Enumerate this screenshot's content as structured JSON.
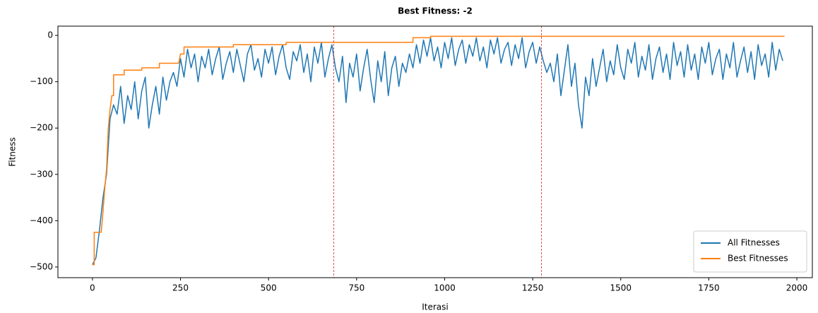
{
  "chart_data": {
    "type": "line",
    "title": "Best Fitness: -2",
    "x_label": "Iterasi",
    "y_label": "Fitness",
    "xlim": [
      -98,
      2044
    ],
    "ylim": [
      -523,
      20
    ],
    "xticks": [
      0,
      250,
      500,
      750,
      1000,
      1250,
      1500,
      1750,
      2000
    ],
    "yticks": [
      {
        "value": -500,
        "label": "−500"
      },
      {
        "value": -400,
        "label": "−400"
      },
      {
        "value": -300,
        "label": "−300"
      },
      {
        "value": -200,
        "label": "−200"
      },
      {
        "value": -100,
        "label": "−100"
      },
      0
    ],
    "legend": "lower right",
    "vlines": [
      685,
      1275
    ],
    "vline_color": "#d62728",
    "series": [
      {
        "name": "All Fitnesses",
        "color": "#1f77b4",
        "x": [
          0,
          10,
          20,
          30,
          40,
          50,
          60,
          70,
          80,
          90,
          100,
          110,
          120,
          130,
          140,
          150,
          160,
          170,
          180,
          190,
          200,
          210,
          220,
          230,
          240,
          250,
          260,
          270,
          280,
          290,
          300,
          310,
          320,
          330,
          340,
          350,
          360,
          370,
          380,
          390,
          400,
          410,
          420,
          430,
          440,
          450,
          460,
          470,
          480,
          490,
          500,
          510,
          520,
          530,
          540,
          550,
          560,
          570,
          580,
          590,
          600,
          610,
          620,
          630,
          640,
          650,
          660,
          670,
          680,
          690,
          700,
          710,
          720,
          730,
          740,
          750,
          760,
          770,
          780,
          790,
          800,
          810,
          820,
          830,
          840,
          850,
          860,
          870,
          880,
          890,
          900,
          910,
          920,
          930,
          940,
          950,
          960,
          970,
          980,
          990,
          1000,
          1010,
          1020,
          1030,
          1040,
          1050,
          1060,
          1070,
          1080,
          1090,
          1100,
          1110,
          1120,
          1130,
          1140,
          1150,
          1160,
          1170,
          1180,
          1190,
          1200,
          1210,
          1220,
          1230,
          1240,
          1250,
          1260,
          1270,
          1280,
          1290,
          1300,
          1310,
          1320,
          1330,
          1340,
          1350,
          1360,
          1370,
          1380,
          1390,
          1400,
          1410,
          1420,
          1430,
          1440,
          1450,
          1460,
          1470,
          1480,
          1490,
          1500,
          1510,
          1520,
          1530,
          1540,
          1550,
          1560,
          1570,
          1580,
          1590,
          1600,
          1610,
          1620,
          1630,
          1640,
          1650,
          1660,
          1670,
          1680,
          1690,
          1700,
          1710,
          1720,
          1730,
          1740,
          1750,
          1760,
          1770,
          1780,
          1790,
          1800,
          1810,
          1820,
          1830,
          1840,
          1850,
          1860,
          1870,
          1880,
          1890,
          1900,
          1910,
          1920,
          1930,
          1940,
          1950,
          1960
        ],
        "values": [
          -495,
          -480,
          -420,
          -350,
          -300,
          -180,
          -150,
          -170,
          -110,
          -190,
          -130,
          -160,
          -100,
          -180,
          -120,
          -90,
          -200,
          -150,
          -110,
          -170,
          -90,
          -140,
          -100,
          -80,
          -110,
          -50,
          -90,
          -30,
          -70,
          -40,
          -100,
          -45,
          -70,
          -30,
          -85,
          -50,
          -25,
          -95,
          -60,
          -35,
          -80,
          -30,
          -65,
          -100,
          -40,
          -20,
          -75,
          -50,
          -90,
          -30,
          -60,
          -25,
          -85,
          -45,
          -20,
          -70,
          -95,
          -35,
          -55,
          -20,
          -80,
          -40,
          -100,
          -25,
          -60,
          -15,
          -90,
          -50,
          -20,
          -70,
          -100,
          -45,
          -145,
          -60,
          -90,
          -40,
          -120,
          -70,
          -30,
          -95,
          -145,
          -55,
          -100,
          -35,
          -130,
          -70,
          -45,
          -110,
          -60,
          -80,
          -40,
          -70,
          -20,
          -60,
          -10,
          -45,
          -5,
          -55,
          -25,
          -70,
          -15,
          -50,
          -5,
          -65,
          -30,
          -10,
          -60,
          -20,
          -45,
          -5,
          -55,
          -25,
          -70,
          -10,
          -40,
          -5,
          -60,
          -30,
          -15,
          -65,
          -20,
          -50,
          -5,
          -70,
          -35,
          -15,
          -60,
          -25,
          -55,
          -80,
          -60,
          -100,
          -40,
          -130,
          -75,
          -20,
          -110,
          -60,
          -150,
          -200,
          -90,
          -130,
          -50,
          -110,
          -70,
          -30,
          -100,
          -55,
          -85,
          -20,
          -70,
          -95,
          -30,
          -60,
          -15,
          -90,
          -45,
          -75,
          -20,
          -95,
          -50,
          -25,
          -80,
          -40,
          -95,
          -15,
          -65,
          -35,
          -90,
          -20,
          -75,
          -40,
          -95,
          -25,
          -60,
          -15,
          -85,
          -50,
          -30,
          -95,
          -40,
          -70,
          -15,
          -90,
          -55,
          -25,
          -80,
          -35,
          -95,
          -20,
          -65,
          -40,
          -90,
          -15,
          -75,
          -30,
          -55
        ]
      },
      {
        "name": "Best Fitnesses",
        "color": "#ff7f0e",
        "x": [
          0,
          5,
          5,
          25,
          30,
          35,
          40,
          45,
          50,
          55,
          60,
          60,
          90,
          90,
          140,
          140,
          190,
          190,
          245,
          250,
          260,
          260,
          400,
          400,
          550,
          550,
          910,
          910,
          960,
          960,
          1965
        ],
        "values": [
          -495,
          -495,
          -425,
          -425,
          -380,
          -330,
          -290,
          -200,
          -160,
          -130,
          -130,
          -85,
          -85,
          -75,
          -75,
          -70,
          -70,
          -60,
          -60,
          -40,
          -40,
          -25,
          -25,
          -20,
          -20,
          -15,
          -15,
          -5,
          -5,
          -2,
          -2
        ]
      }
    ]
  }
}
